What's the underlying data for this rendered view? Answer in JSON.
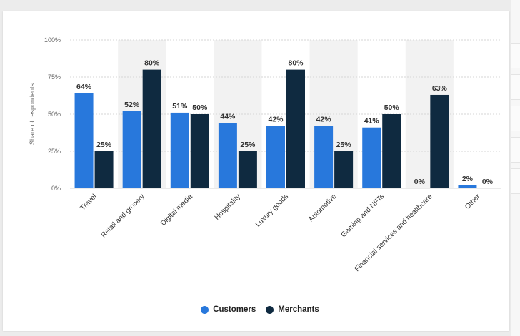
{
  "colors": {
    "customers": "#2878dc",
    "merchants": "#0f2a40",
    "band": "#f2f2f2",
    "grid": "#d6d6d6"
  },
  "chart_data": {
    "type": "bar",
    "ylabel": "Share of respondents",
    "ylim": [
      0,
      100
    ],
    "yticks": [
      "0%",
      "25%",
      "50%",
      "75%",
      "100%"
    ],
    "categories": [
      "Travel",
      "Retail and grocery",
      "Digital media",
      "Hospitality",
      "Luxury goods",
      "Automotive",
      "Gaming and NFTs",
      "Financial services and healthcare",
      "Other"
    ],
    "series": [
      {
        "name": "Customers",
        "values": [
          64,
          52,
          51,
          44,
          42,
          42,
          41,
          0,
          2
        ]
      },
      {
        "name": "Merchants",
        "values": [
          25,
          80,
          50,
          25,
          80,
          25,
          50,
          63,
          0
        ]
      }
    ],
    "legend_position": "bottom",
    "grid": true
  }
}
